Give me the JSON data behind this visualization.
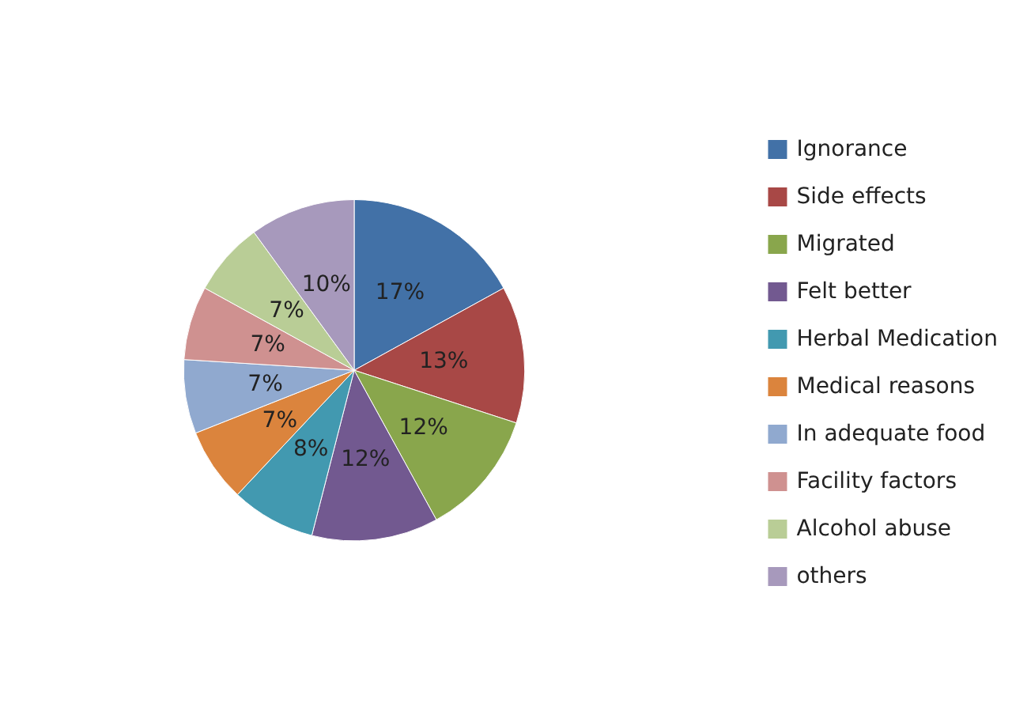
{
  "chart_data": {
    "type": "pie",
    "categories": [
      "Ignorance",
      "Side effects",
      "Migrated",
      "Felt better",
      "Herbal Medication",
      "Medical reasons",
      "In adequate food",
      "Facility factors",
      "Alcohol abuse",
      "others"
    ],
    "values": [
      17,
      13,
      12,
      12,
      8,
      7,
      7,
      7,
      7,
      10
    ],
    "colors": [
      "#4271a7",
      "#a84846",
      "#89a64c",
      "#725990",
      "#4299b0",
      "#db843d",
      "#90a9cf",
      "#cf9190",
      "#b9cd96",
      "#a799bc"
    ],
    "value_labels": [
      "17%",
      "13%",
      "12%",
      "12%",
      "8%",
      "7%",
      "7%",
      "7%",
      "7%",
      "10%"
    ],
    "legend": "right"
  }
}
